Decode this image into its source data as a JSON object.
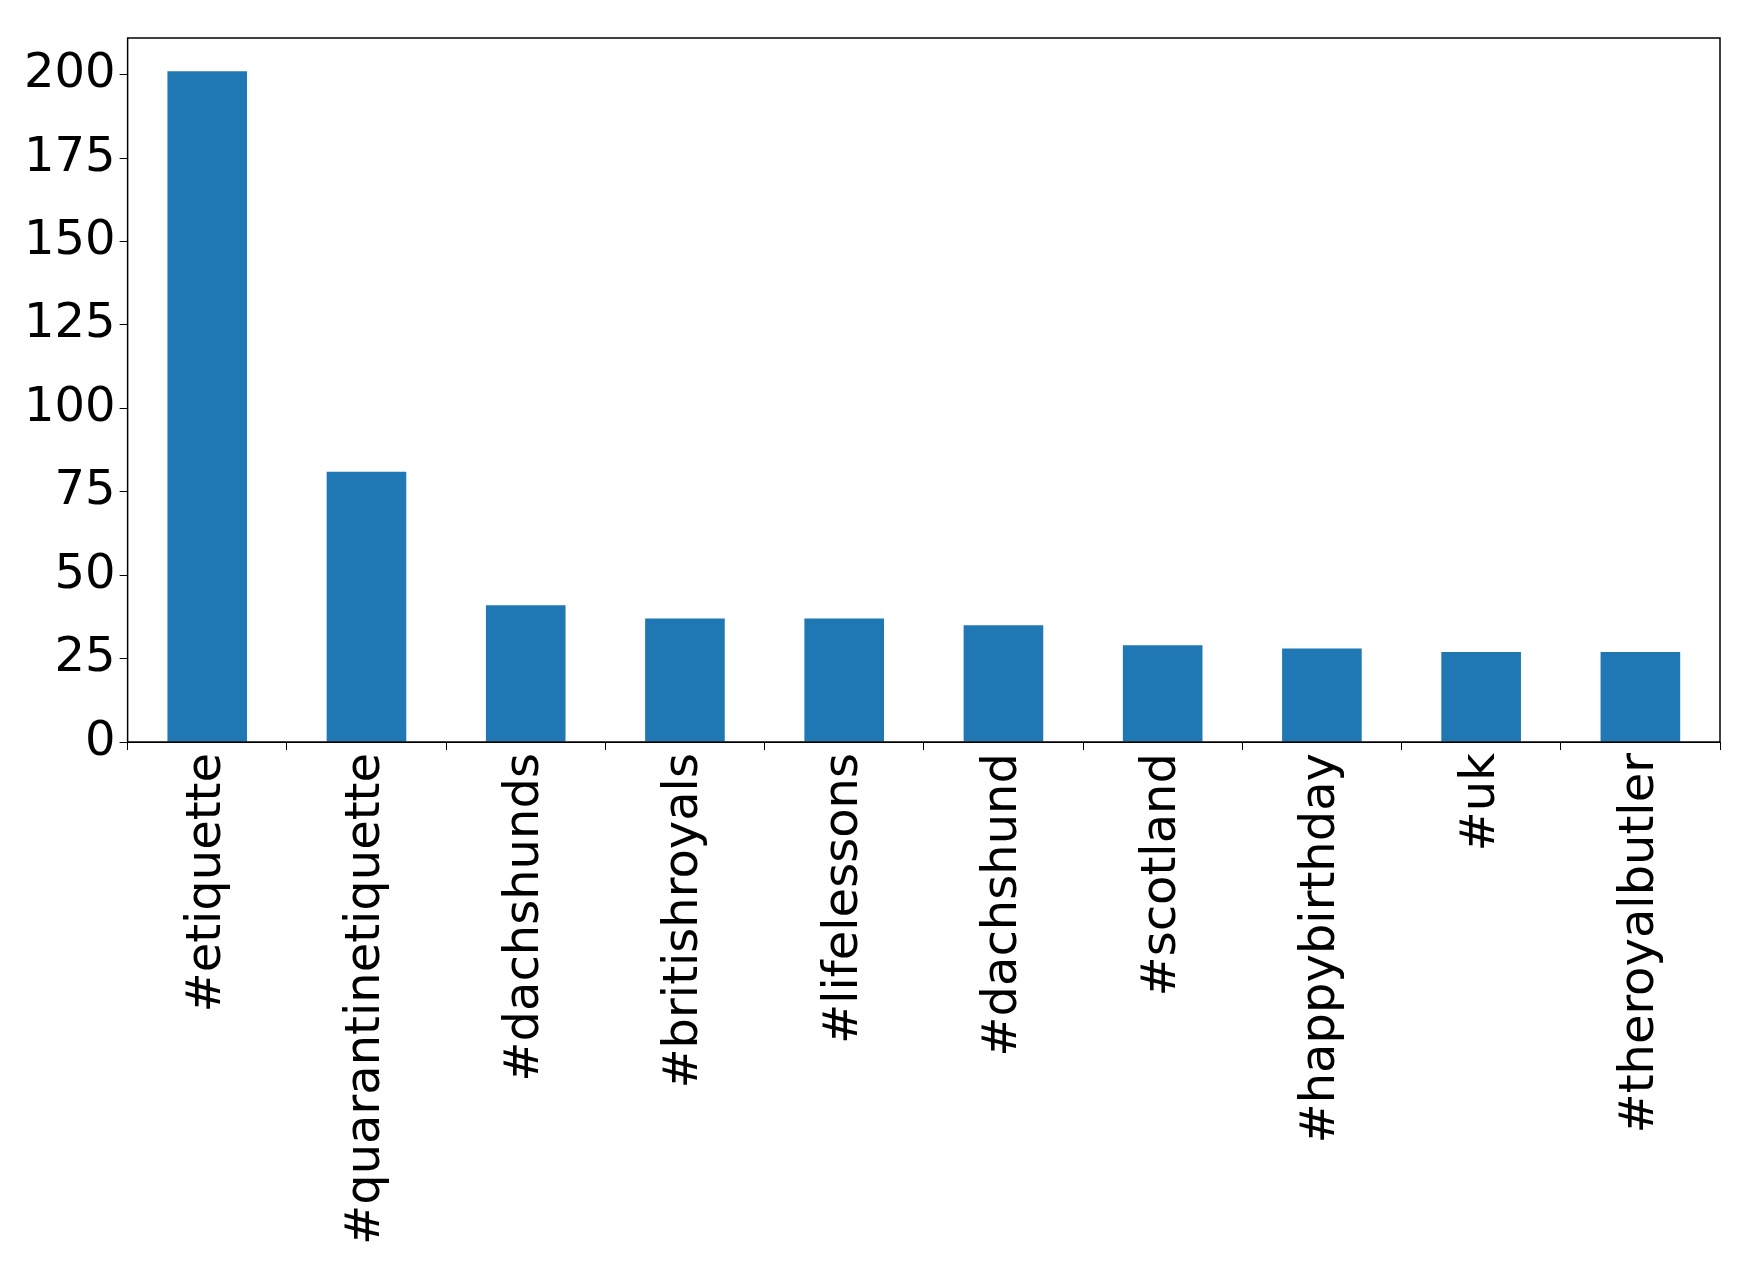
{
  "chart_data": {
    "type": "bar",
    "categories": [
      "#etiquette",
      "#quarantinetiquette",
      "#dachshunds",
      "#britishroyals",
      "#lifelessons",
      "#dachshund",
      "#scotland",
      "#happybirthday",
      "#uk",
      "#theroyalbutler"
    ],
    "values": [
      201,
      81,
      41,
      37,
      37,
      35,
      29,
      28,
      27,
      27
    ],
    "color": "#1f77b4",
    "ylim": [
      0,
      211
    ],
    "yticks": [
      0,
      25,
      50,
      75,
      100,
      125,
      150,
      175,
      200
    ],
    "grid": false,
    "legend": false
  }
}
